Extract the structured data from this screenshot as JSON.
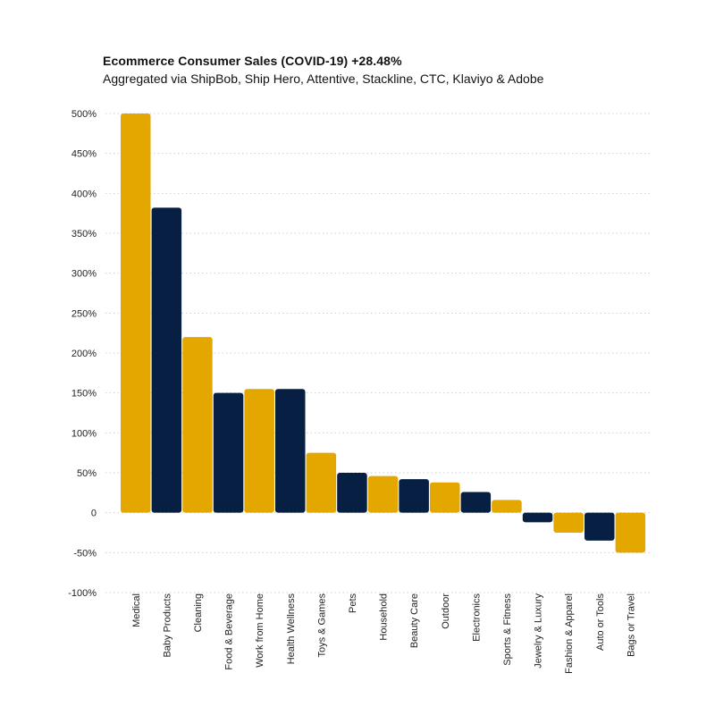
{
  "chart_data": {
    "type": "bar",
    "title": "Ecommerce Consumer Sales (COVID-19) +28.48%",
    "subtitle": "Aggregated via ShipBob, Ship Hero, Attentive, Stackline, CTC, Klaviyo & Adobe",
    "categories": [
      "Medical",
      "Baby Products",
      "Cleaning",
      "Food & Beverage",
      "Work from Home",
      "Health Wellness",
      "Toys & Games",
      "Pets",
      "Household",
      "Beauty Care",
      "Outdoor",
      "Electronics",
      "Sports & Fitness",
      "Jewelry & Luxury",
      "Fashion & Apparel",
      "Auto or Tools",
      "Bags or Travel"
    ],
    "values": [
      500,
      382,
      220,
      150,
      155,
      155,
      75,
      50,
      46,
      42,
      38,
      26,
      16,
      -12,
      -25,
      -35,
      -50
    ],
    "yticks": [
      "500%",
      "450%",
      "400%",
      "350%",
      "300%",
      "250%",
      "200%",
      "150%",
      "100%",
      "50%",
      "0",
      "-50%",
      "-100%"
    ],
    "ylim": [
      -100,
      500
    ],
    "grid": true,
    "colors": [
      "#E3A700",
      "#061F42"
    ]
  }
}
